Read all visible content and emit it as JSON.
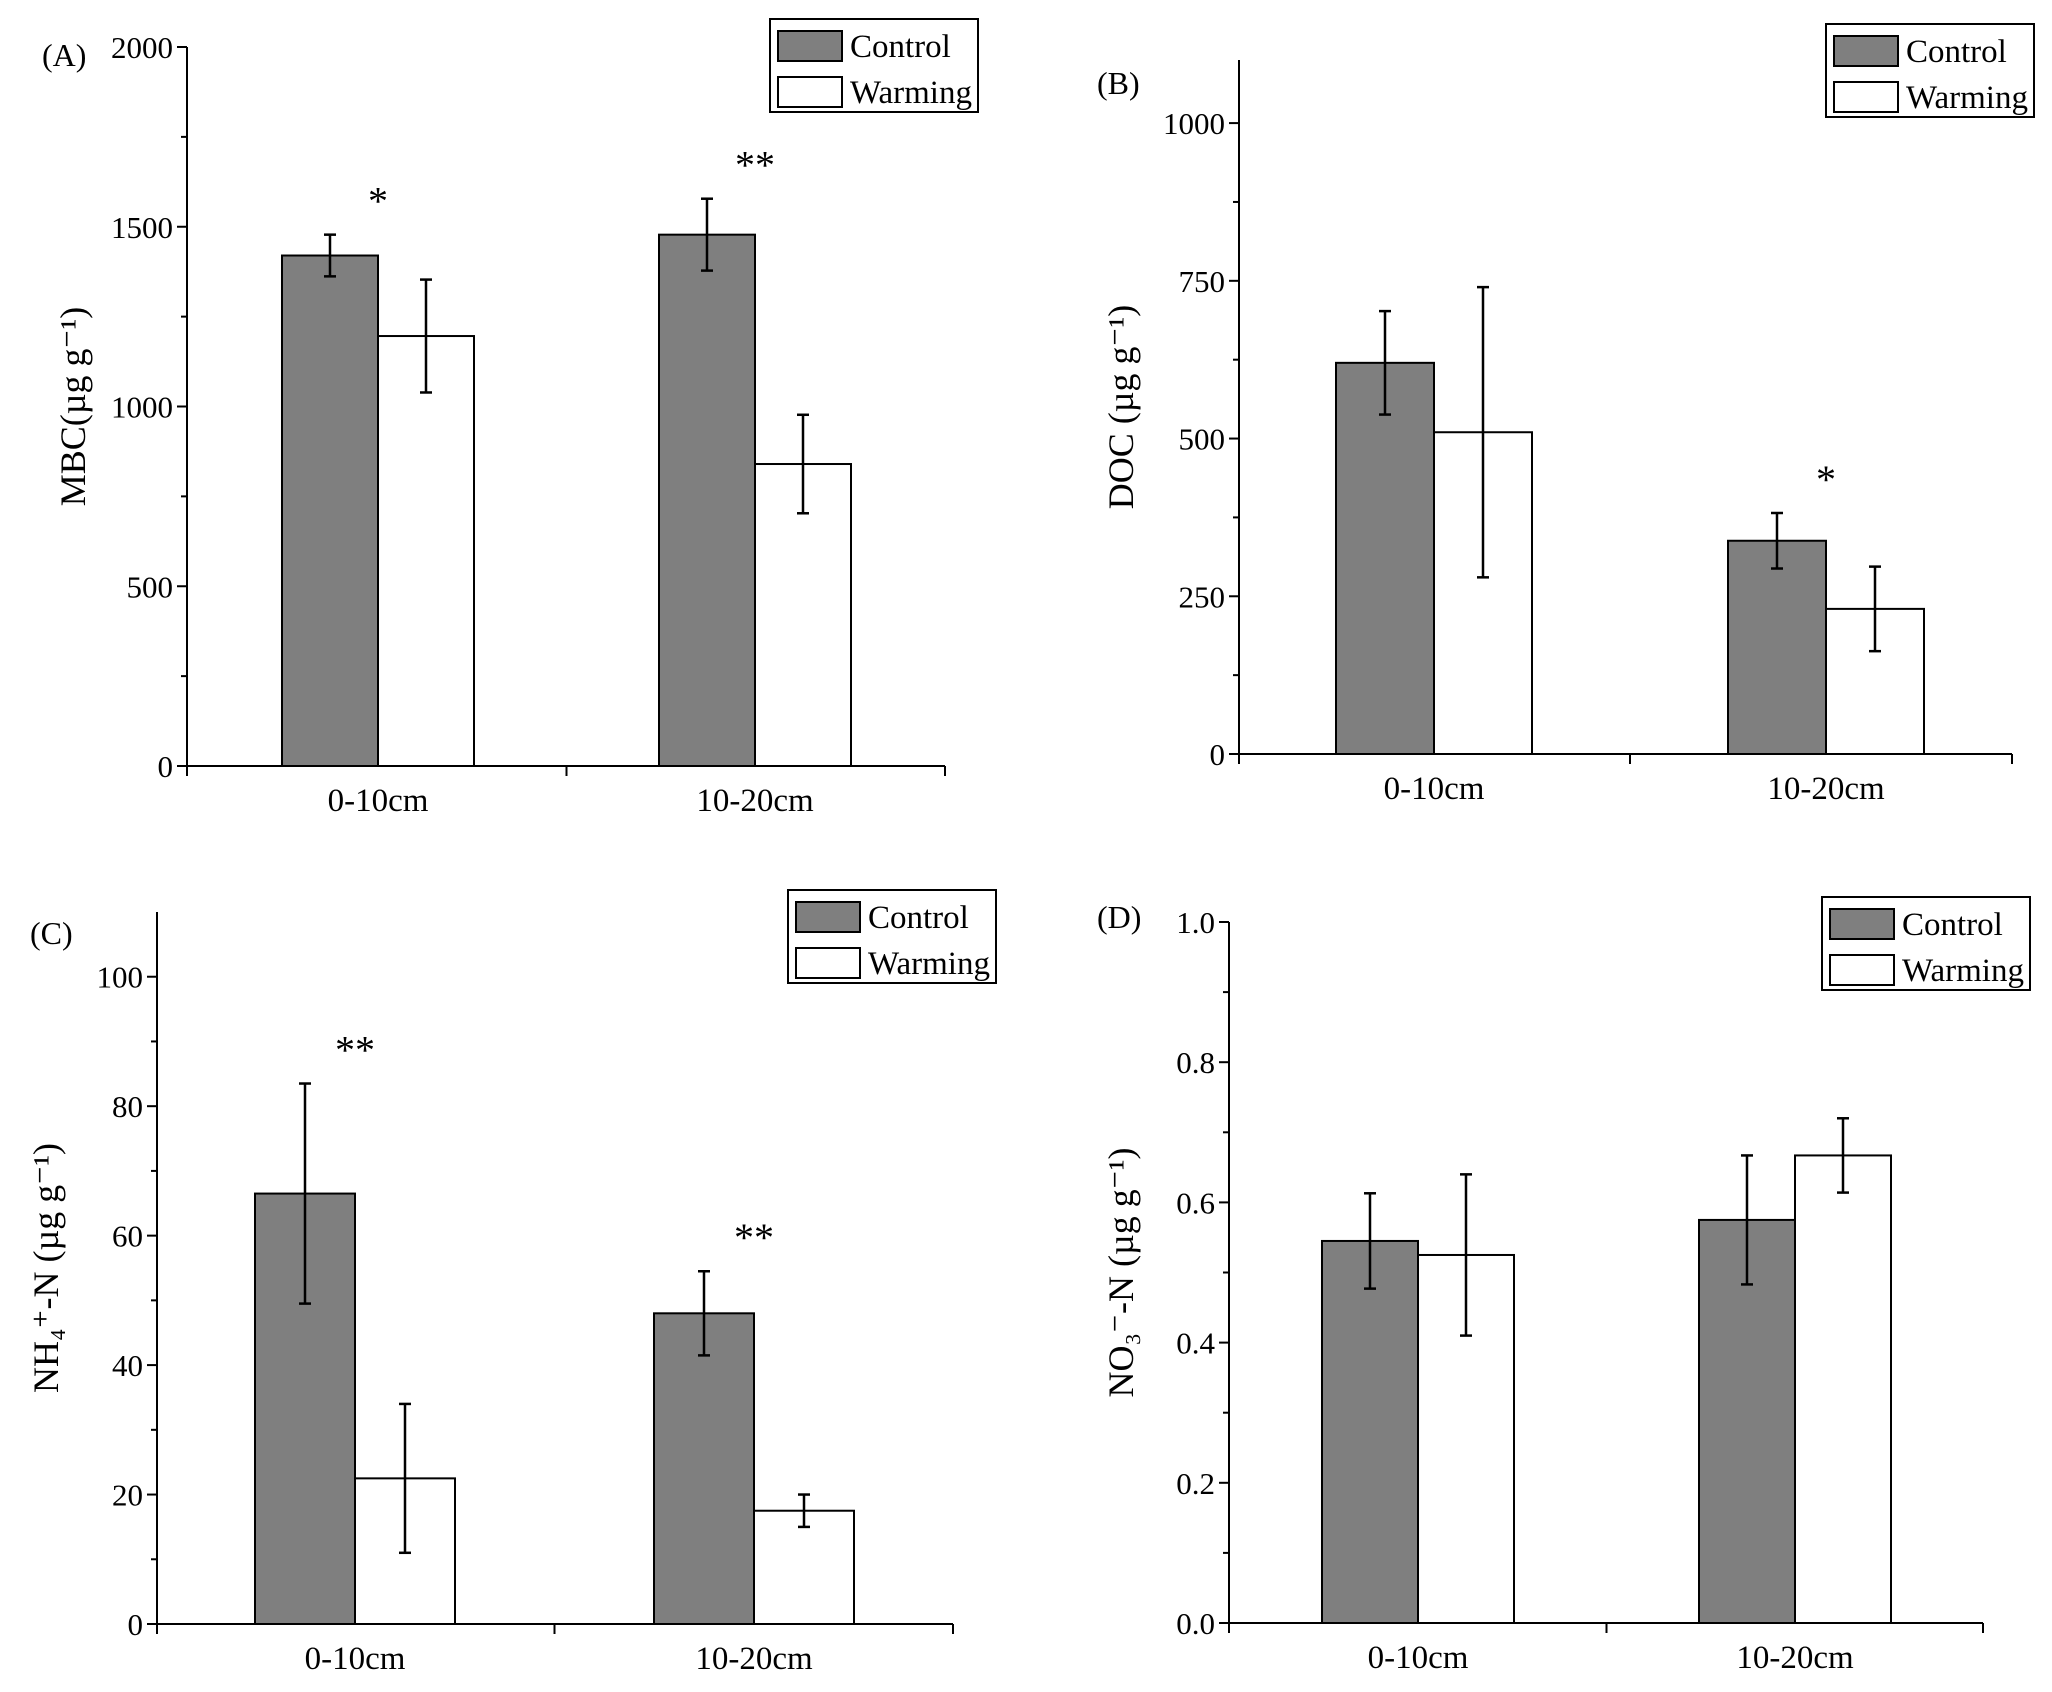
{
  "colors": {
    "control": "#7f7f7f",
    "warming": "#ffffff",
    "stroke": "#000000"
  },
  "chart_data": [
    {
      "panel_label": "(A)",
      "type": "bar",
      "categories": [
        "0-10cm",
        "10-20cm"
      ],
      "series": [
        {
          "name": "Control",
          "values": [
            1420,
            1478
          ],
          "errors": [
            58,
            100
          ]
        },
        {
          "name": "Warming",
          "values": [
            1196,
            840
          ],
          "errors": [
            157,
            137
          ]
        }
      ],
      "significance": [
        "*",
        "**"
      ],
      "ylabel": "MBC(µg g⁻¹)",
      "ylim": [
        0,
        2000
      ],
      "yticks": [
        0,
        500,
        1000,
        1500,
        2000
      ],
      "legend_position": "top-right"
    },
    {
      "panel_label": "(B)",
      "type": "bar",
      "categories": [
        "0-10cm",
        "10-20cm"
      ],
      "series": [
        {
          "name": "Control",
          "values": [
            620,
            338
          ],
          "errors": [
            82,
            44
          ]
        },
        {
          "name": "Warming",
          "values": [
            510,
            230
          ],
          "errors": [
            230,
            67
          ]
        }
      ],
      "significance": [
        "",
        "*"
      ],
      "ylabel": "DOC (µg g⁻¹)",
      "ylim": [
        0,
        1100
      ],
      "yticks": [
        0,
        250,
        500,
        750,
        1000
      ],
      "legend_position": "top-right"
    },
    {
      "panel_label": "(C)",
      "type": "bar",
      "categories": [
        "0-10cm",
        "10-20cm"
      ],
      "series": [
        {
          "name": "Control",
          "values": [
            66.5,
            48
          ],
          "errors": [
            17,
            6.5
          ]
        },
        {
          "name": "Warming",
          "values": [
            22.5,
            17.5
          ],
          "errors": [
            11.5,
            2.5
          ]
        }
      ],
      "significance": [
        "**",
        "**"
      ],
      "ylabel": "NH₄⁺-N (µg g⁻¹)",
      "ylim": [
        0,
        110
      ],
      "yticks": [
        0,
        20,
        40,
        60,
        80,
        100
      ],
      "legend_position": "top-right"
    },
    {
      "panel_label": "(D)",
      "type": "bar",
      "categories": [
        "0-10cm",
        "10-20cm"
      ],
      "series": [
        {
          "name": "Control",
          "values": [
            0.545,
            0.575
          ],
          "errors": [
            0.068,
            0.092
          ]
        },
        {
          "name": "Warming",
          "values": [
            0.525,
            0.667
          ],
          "errors": [
            0.115,
            0.053
          ]
        }
      ],
      "significance": [
        "",
        ""
      ],
      "ylabel": "NO₃⁻-N (µg g⁻¹)",
      "ylim": [
        0,
        1.0
      ],
      "yticks": [
        "0.0",
        "0.2",
        "0.4",
        "0.6",
        "0.8",
        "1.0"
      ],
      "legend_position": "top-right"
    }
  ]
}
